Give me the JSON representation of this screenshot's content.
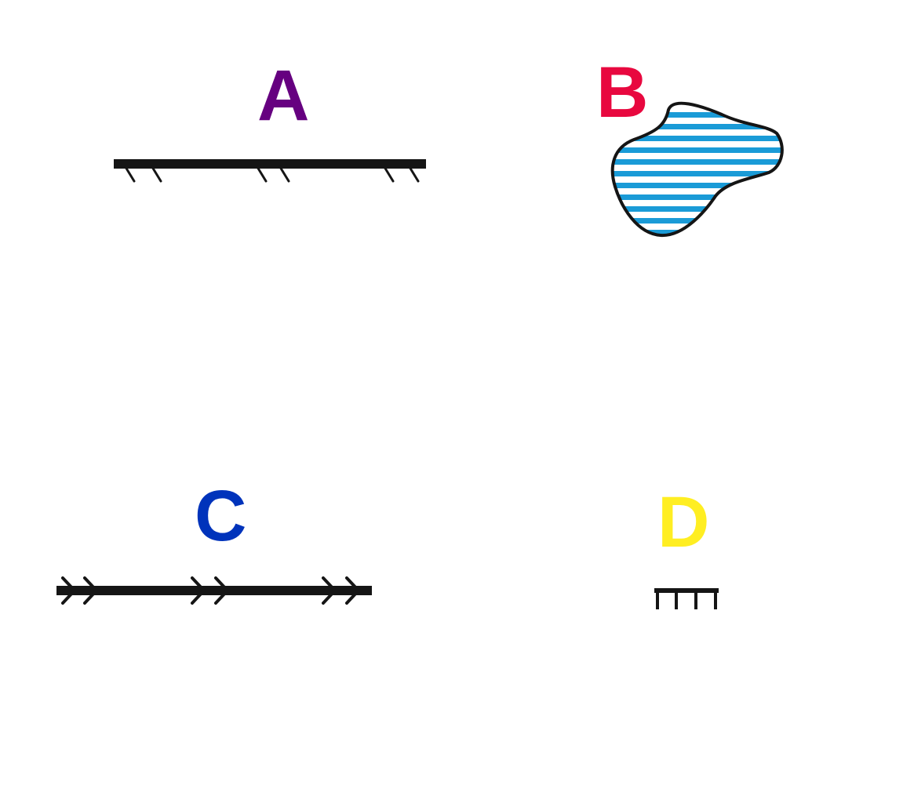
{
  "symbols": [
    {
      "label": "A",
      "label_color": "#660080",
      "symbol": "hachured-line-symbol"
    },
    {
      "label": "B",
      "label_color": "#e8083f",
      "symbol": "striped-area-symbol",
      "fill_color": "#1a9bd7"
    },
    {
      "label": "C",
      "label_color": "#0033bb",
      "symbol": "double-chevron-line-symbol"
    },
    {
      "label": "D",
      "label_color": "#ffee22",
      "symbol": "comb-line-symbol"
    }
  ],
  "line_color": "#151515"
}
